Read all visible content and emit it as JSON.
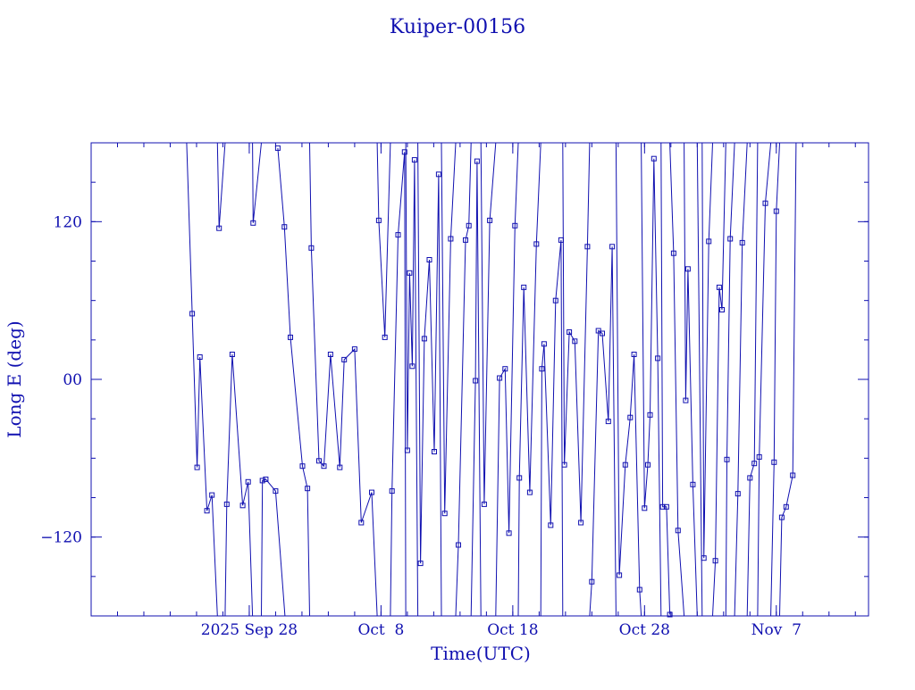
{
  "chart_data": {
    "type": "line",
    "title": "Kuiper-00156",
    "xlabel": "Time(UTC)",
    "ylabel": "Long E (deg)",
    "x_unit": "date (UTC, 2025)",
    "xlim": [
      "2025-09-16",
      "2025-11-14"
    ],
    "ylim": [
      -180,
      180
    ],
    "x_ticks": [
      {
        "label": "2025 Sep 28",
        "date": "2025-09-28"
      },
      {
        "label": "Oct  8",
        "date": "2025-10-08"
      },
      {
        "label": "Oct 18",
        "date": "2025-10-18"
      },
      {
        "label": "Oct 28",
        "date": "2025-10-28"
      },
      {
        "label": "Nov  7",
        "date": "2025-11-07"
      }
    ],
    "y_ticks": [
      {
        "label": "−120",
        "value": -120
      },
      {
        "label": "00",
        "value": 0
      },
      {
        "label": "120",
        "value": 120
      }
    ],
    "grid": false,
    "marker": "open-square",
    "color": "#1010b0",
    "series": [
      {
        "points": [
          [
            "2025-09-23T06:00",
            180
          ],
          [
            "2025-09-23T16:00",
            50
          ],
          [
            "2025-09-24T01:00",
            -67
          ],
          [
            "2025-09-24T06:00",
            17
          ],
          [
            "2025-09-24T19:00",
            -100
          ],
          [
            "2025-09-25T04:00",
            -88
          ],
          [
            "2025-09-25T14:00",
            -180
          ],
          null,
          [
            "2025-09-25T14:00",
            180
          ],
          [
            "2025-09-25T17:00",
            115
          ],
          [
            "2025-09-26T04:00",
            180
          ],
          null,
          [
            "2025-09-26T04:00",
            -180
          ],
          [
            "2025-09-26T07:00",
            -95
          ],
          [
            "2025-09-26T17:00",
            19
          ],
          [
            "2025-09-27T12:00",
            -96
          ],
          [
            "2025-09-27T22:00",
            -78
          ],
          [
            "2025-09-28T06:00",
            -180
          ],
          null,
          [
            "2025-09-28T06:00",
            180
          ],
          [
            "2025-09-28T07:00",
            119
          ],
          [
            "2025-09-28T22:00",
            180
          ],
          null,
          [
            "2025-09-28T22:00",
            -180
          ],
          [
            "2025-09-29T00:00",
            -77
          ],
          [
            "2025-09-29T06:00",
            -76
          ],
          [
            "2025-09-30T00:00",
            -85
          ],
          [
            "2025-09-30T17:00",
            -180
          ],
          null,
          [
            "2025-09-30T04:00",
            176
          ],
          [
            "2025-09-30T16:00",
            116
          ],
          [
            "2025-10-01T03:00",
            32
          ],
          [
            "2025-10-02T01:00",
            -66
          ],
          [
            "2025-10-02T10:00",
            -83
          ],
          [
            "2025-10-02T14:00",
            -180
          ],
          null,
          [
            "2025-10-02T14:00",
            180
          ],
          [
            "2025-10-02T17:00",
            100
          ],
          [
            "2025-10-03T07:00",
            -62
          ],
          [
            "2025-10-03T16:00",
            -66
          ],
          [
            "2025-10-04T04:00",
            19
          ],
          [
            "2025-10-04T21:00",
            -67
          ],
          [
            "2025-10-05T05:00",
            15
          ],
          [
            "2025-10-06T00:00",
            23
          ],
          [
            "2025-10-06T12:00",
            -109
          ],
          [
            "2025-10-07T07:00",
            -86
          ],
          [
            "2025-10-07T17:00",
            -180
          ],
          null,
          [
            "2025-10-07T17:00",
            180
          ],
          [
            "2025-10-07T20:00",
            121
          ],
          [
            "2025-10-08T07:00",
            32
          ],
          [
            "2025-10-08T17:00",
            180
          ],
          null,
          [
            "2025-10-08T17:00",
            -180
          ],
          [
            "2025-10-08T20:00",
            -85
          ],
          [
            "2025-10-09T07:00",
            110
          ],
          [
            "2025-10-09T19:00",
            173
          ],
          [
            "2025-10-09T21:00",
            -180
          ],
          null,
          [
            "2025-10-09T21:00",
            180
          ],
          [
            "2025-10-10T00:00",
            -54
          ],
          [
            "2025-10-10T04:00",
            81
          ],
          [
            "2025-10-10T09:00",
            10
          ],
          [
            "2025-10-10T13:00",
            167
          ],
          [
            "2025-10-10T19:00",
            -180
          ],
          null,
          [
            "2025-10-10T19:00",
            180
          ],
          [
            "2025-10-11T00:00",
            -140
          ],
          [
            "2025-10-11T07:00",
            31
          ],
          [
            "2025-10-11T16:00",
            91
          ],
          [
            "2025-10-12T01:00",
            -55
          ],
          [
            "2025-10-12T09:00",
            156
          ],
          [
            "2025-10-12T14:00",
            -180
          ],
          null,
          [
            "2025-10-12T14:00",
            180
          ],
          [
            "2025-10-12T20:00",
            -102
          ],
          [
            "2025-10-13T07:00",
            107
          ],
          [
            "2025-10-13T16:00",
            180
          ],
          null,
          [
            "2025-10-13T16:00",
            -180
          ],
          [
            "2025-10-13T21:00",
            -126
          ],
          [
            "2025-10-14T10:00",
            106
          ],
          [
            "2025-10-14T16:00",
            117
          ],
          [
            "2025-10-14T20:00",
            180
          ],
          null,
          [
            "2025-10-14T20:00",
            -180
          ],
          [
            "2025-10-15T04:00",
            -1
          ],
          [
            "2025-10-15T07:00",
            166
          ],
          [
            "2025-10-15T14:00",
            -180
          ],
          null,
          [
            "2025-10-15T14:00",
            180
          ],
          [
            "2025-10-15T20:00",
            -95
          ],
          [
            "2025-10-16T06:00",
            121
          ],
          [
            "2025-10-16T17:00",
            180
          ],
          null,
          [
            "2025-10-16T17:00",
            -180
          ],
          [
            "2025-10-17T00:00",
            1
          ],
          [
            "2025-10-17T10:00",
            8
          ],
          [
            "2025-10-17T17:00",
            -117
          ],
          [
            "2025-10-18T04:00",
            117
          ],
          [
            "2025-10-18T10:00",
            180
          ],
          null,
          [
            "2025-10-18T10:00",
            -180
          ],
          [
            "2025-10-18T12:00",
            -75
          ],
          [
            "2025-10-18T20:00",
            70
          ],
          [
            "2025-10-19T07:00",
            -86
          ],
          [
            "2025-10-19T19:00",
            103
          ],
          [
            "2025-10-20T03:00",
            180
          ],
          null,
          [
            "2025-10-20T03:00",
            -180
          ],
          [
            "2025-10-20T05:00",
            8
          ],
          [
            "2025-10-20T09:00",
            27
          ],
          [
            "2025-10-20T21:00",
            -111
          ],
          [
            "2025-10-21T06:00",
            60
          ],
          [
            "2025-10-21T16:00",
            106
          ],
          [
            "2025-10-21T19:00",
            -180
          ],
          null,
          [
            "2025-10-21T19:00",
            180
          ],
          [
            "2025-10-21T22:00",
            -65
          ],
          [
            "2025-10-22T07:00",
            36
          ],
          [
            "2025-10-22T17:00",
            29
          ],
          [
            "2025-10-23T04:00",
            -109
          ],
          [
            "2025-10-23T16:00",
            101
          ],
          [
            "2025-10-23T20:00",
            180
          ],
          null,
          [
            "2025-10-23T20:00",
            -180
          ],
          [
            "2025-10-24T00:00",
            -154
          ],
          [
            "2025-10-24T12:00",
            37
          ],
          [
            "2025-10-24T19:00",
            35
          ],
          [
            "2025-10-25T06:00",
            -32
          ],
          [
            "2025-10-25T13:00",
            101
          ],
          [
            "2025-10-25T20:00",
            -180
          ],
          null,
          [
            "2025-10-25T20:00",
            180
          ],
          [
            "2025-10-26T02:00",
            -149
          ],
          [
            "2025-10-26T13:00",
            -65
          ],
          [
            "2025-10-26T22:00",
            -29
          ],
          [
            "2025-10-27T05:00",
            19
          ],
          [
            "2025-10-27T15:00",
            -160
          ],
          [
            "2025-10-27T18:00",
            -180
          ],
          null,
          [
            "2025-10-27T18:00",
            180
          ],
          [
            "2025-10-28T00:00",
            -98
          ],
          [
            "2025-10-28T06:00",
            -65
          ],
          [
            "2025-10-28T10:00",
            -27
          ],
          [
            "2025-10-28T17:00",
            168
          ],
          [
            "2025-10-29T00:00",
            16
          ],
          [
            "2025-10-29T06:00",
            -180
          ],
          null,
          [
            "2025-10-29T06:00",
            180
          ],
          [
            "2025-10-29T09:00",
            -97
          ],
          [
            "2025-10-29T16:00",
            -97
          ],
          [
            "2025-10-29T22:00",
            -179
          ],
          null,
          [
            "2025-10-29T22:00",
            180
          ],
          [
            "2025-10-30T05:00",
            96
          ],
          [
            "2025-10-30T13:00",
            -115
          ],
          [
            "2025-10-31T00:00",
            -180
          ],
          null,
          [
            "2025-10-31T00:00",
            180
          ],
          [
            "2025-10-31T03:00",
            -16
          ],
          [
            "2025-10-31T07:00",
            84
          ],
          [
            "2025-10-31T16:00",
            -80
          ],
          [
            "2025-11-01T00:00",
            -180
          ],
          null,
          [
            "2025-11-01T00:00",
            180
          ],
          [
            "2025-11-01T09:00",
            -180
          ],
          null,
          [
            "2025-11-01T09:00",
            180
          ],
          [
            "2025-11-01T12:00",
            -136
          ],
          [
            "2025-11-01T21:00",
            105
          ],
          [
            "2025-11-02T04:00",
            180
          ],
          null,
          [
            "2025-11-02T04:00",
            -180
          ],
          [
            "2025-11-02T09:00",
            -138
          ],
          [
            "2025-11-02T16:00",
            70
          ],
          [
            "2025-11-02T21:00",
            53
          ],
          [
            "2025-11-03T04:00",
            180
          ],
          null,
          [
            "2025-11-03T04:00",
            -180
          ],
          [
            "2025-11-03T06:00",
            -61
          ],
          [
            "2025-11-03T12:00",
            107
          ],
          [
            "2025-11-03T20:00",
            180
          ],
          null,
          [
            "2025-11-03T20:00",
            -180
          ],
          [
            "2025-11-04T02:00",
            -87
          ],
          [
            "2025-11-04T10:00",
            104
          ],
          [
            "2025-11-04T19:00",
            180
          ],
          null,
          [
            "2025-11-04T19:00",
            -180
          ],
          [
            "2025-11-05T00:00",
            -75
          ],
          [
            "2025-11-05T08:00",
            -64
          ],
          [
            "2025-11-05T14:00",
            180
          ],
          null,
          [
            "2025-11-05T14:00",
            -180
          ],
          [
            "2025-11-05T17:00",
            -59
          ],
          [
            "2025-11-06T04:00",
            134
          ],
          [
            "2025-11-06T14:00",
            180
          ],
          null,
          [
            "2025-11-06T14:00",
            -180
          ],
          [
            "2025-11-06T20:00",
            -63
          ],
          [
            "2025-11-07T00:00",
            128
          ],
          [
            "2025-11-07T06:00",
            180
          ],
          null,
          [
            "2025-11-07T06:00",
            -180
          ],
          [
            "2025-11-07T10:00",
            -105
          ],
          [
            "2025-11-07T18:00",
            -97
          ],
          [
            "2025-11-08T06:00",
            -73
          ],
          [
            "2025-11-08T12:00",
            180
          ]
        ]
      }
    ]
  }
}
